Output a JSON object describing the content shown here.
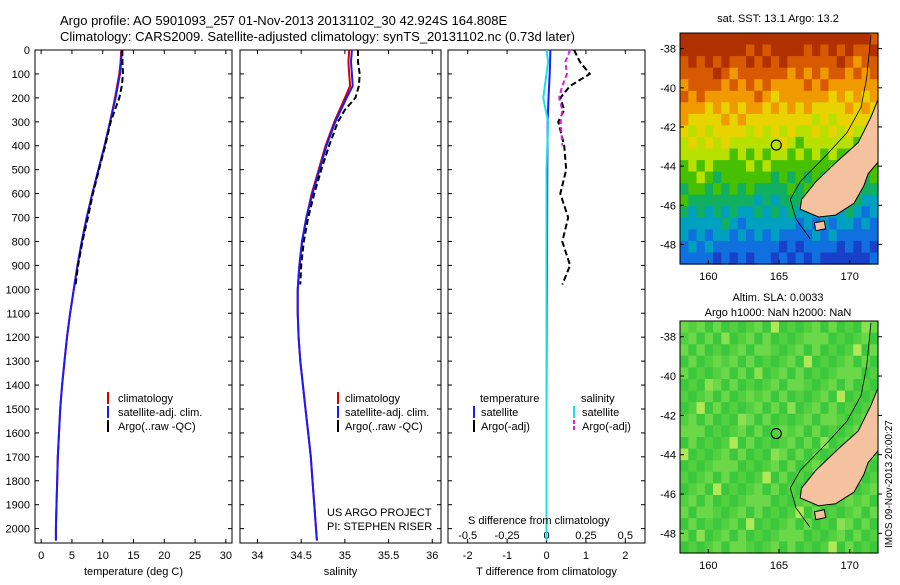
{
  "header": {
    "line1": "Argo profile: AO 5901093_257 01-Nov-2013 20131102_30 42.924S 164.808E",
    "line2": "Climatology: CARS2009. Satellite-adjusted climatology: synTS_20131102.nc (0.73d later)"
  },
  "panels": {
    "temperature": {
      "xlabel": "temperature (deg C)",
      "legend": [
        "climatology",
        "satellite-adj. clim.",
        "Argo(..raw -QC)"
      ]
    },
    "salinity": {
      "xlabel": "salinity",
      "legend": [
        "climatology",
        "satellite-adj. clim.",
        "Argo(..raw -QC)"
      ],
      "credit1": "US ARGO PROJECT",
      "credit2": "PI: STEPHEN RISER"
    },
    "difference": {
      "s_label": "S difference from climatology",
      "xlabel": "T difference from climatology",
      "legend_temperature_head": "temperature",
      "legend_salinity_head": "salinity",
      "legend_temperature": [
        "satellite",
        "Argo(-adj)"
      ],
      "legend_salinity": [
        "satellite",
        "Argo(-adj)"
      ]
    }
  },
  "maps": {
    "sst": {
      "title": "sat. SST: 13.1 Argo: 13.2"
    },
    "sla": {
      "title1": "Altim. SLA: 0.0033",
      "title2": "Argo h1000: NaN h2000: NaN"
    },
    "lat_ticks": [
      "-38",
      "-40",
      "-42",
      "-44",
      "-46",
      "-48"
    ],
    "lon_ticks": [
      "160",
      "165",
      "170"
    ],
    "lat_values": [
      -38,
      -40,
      -42,
      -44,
      -46,
      -48
    ],
    "lon_values": [
      160,
      165,
      170
    ],
    "lat_range": [
      -49,
      -37.2
    ],
    "lon_range": [
      158,
      172
    ],
    "float_position": {
      "lon": 164.808,
      "lat": -42.924
    }
  },
  "footer": {
    "stamp": "IMOS 09-Nov-2013 20:00:27"
  },
  "colors": {
    "climatology": "#d40000",
    "satellite_adj": "#1a1aff",
    "argo": "#000000",
    "salinity_satellite": "#18e0e8",
    "salinity_argo": "#dd1fdd",
    "land": "#f5c2a0"
  },
  "chart_data": [
    {
      "type": "line",
      "title": "",
      "xlabel": "temperature (deg C)",
      "ylabel": "",
      "xlim": [
        -1,
        31
      ],
      "ylim": [
        2060,
        0
      ],
      "xticks": [
        0,
        5,
        10,
        15,
        20,
        25,
        30
      ],
      "yticks": [
        0,
        100,
        200,
        300,
        400,
        500,
        600,
        700,
        800,
        900,
        1000,
        1100,
        1200,
        1300,
        1400,
        1500,
        1600,
        1700,
        1800,
        1900,
        2000
      ],
      "series": [
        {
          "name": "climatology",
          "y": [
            0,
            50,
            100,
            200,
            300,
            400,
            500,
            600,
            700,
            800,
            900,
            1000,
            1100,
            1200,
            1300,
            1400,
            1500,
            1600,
            1700,
            1800,
            1900,
            2000,
            2050
          ],
          "x": [
            13.0,
            12.9,
            12.7,
            12.0,
            11.2,
            10.3,
            9.3,
            8.3,
            7.4,
            6.6,
            5.9,
            5.3,
            4.7,
            4.2,
            3.8,
            3.4,
            3.1,
            2.9,
            2.7,
            2.6,
            2.5,
            2.4,
            2.4
          ]
        },
        {
          "name": "satellite-adj. clim.",
          "y": [
            0,
            50,
            100,
            200,
            300,
            400,
            500,
            600,
            700,
            800,
            900,
            1000,
            1100,
            1200,
            1300,
            1400,
            1500,
            1600,
            1700,
            1800,
            1900,
            2000,
            2050
          ],
          "x": [
            13.1,
            13.0,
            12.8,
            12.1,
            11.2,
            10.3,
            9.3,
            8.3,
            7.4,
            6.6,
            5.9,
            5.3,
            4.7,
            4.2,
            3.8,
            3.4,
            3.1,
            2.9,
            2.7,
            2.6,
            2.5,
            2.4,
            2.4
          ]
        },
        {
          "name": "Argo(..raw -QC)",
          "y": [
            0,
            50,
            100,
            150,
            200,
            250,
            300,
            400,
            500,
            600,
            700,
            800,
            900,
            980
          ],
          "x": [
            13.2,
            13.2,
            13.3,
            13.1,
            12.7,
            12.0,
            11.3,
            10.4,
            9.4,
            8.4,
            7.6,
            6.7,
            6.0,
            5.6
          ]
        }
      ]
    },
    {
      "type": "line",
      "title": "",
      "xlabel": "salinity",
      "ylabel": "",
      "xlim": [
        33.8,
        36.1
      ],
      "ylim": [
        2060,
        0
      ],
      "xticks": [
        34,
        34.5,
        35,
        35.5,
        36
      ],
      "series": [
        {
          "name": "climatology",
          "y": [
            0,
            50,
            100,
            150,
            200,
            300,
            400,
            500,
            600,
            700,
            800,
            900,
            1000,
            1100,
            1200,
            1300,
            1400,
            1500,
            1600,
            1700,
            1800,
            1900,
            2000,
            2050
          ],
          "x": [
            35.05,
            35.04,
            35.05,
            35.06,
            35.0,
            34.88,
            34.78,
            34.7,
            34.62,
            34.56,
            34.51,
            34.48,
            34.46,
            34.46,
            34.47,
            34.49,
            34.52,
            34.55,
            34.58,
            34.61,
            34.63,
            34.65,
            34.67,
            34.68
          ]
        },
        {
          "name": "satellite-adj. clim.",
          "y": [
            0,
            50,
            100,
            150,
            200,
            300,
            400,
            500,
            600,
            700,
            800,
            900,
            1000,
            1100,
            1200,
            1300,
            1400,
            1500,
            1600,
            1700,
            1800,
            1900,
            2000,
            2050
          ],
          "x": [
            35.08,
            35.07,
            35.08,
            35.09,
            35.02,
            34.89,
            34.79,
            34.71,
            34.63,
            34.56,
            34.51,
            34.48,
            34.46,
            34.46,
            34.47,
            34.49,
            34.52,
            34.55,
            34.58,
            34.61,
            34.63,
            34.65,
            34.67,
            34.68
          ]
        },
        {
          "name": "Argo(..raw -QC)",
          "y": [
            0,
            50,
            100,
            150,
            200,
            250,
            300,
            400,
            500,
            600,
            700,
            800,
            900,
            980
          ],
          "x": [
            35.15,
            35.15,
            35.17,
            35.16,
            35.12,
            35.0,
            34.92,
            34.82,
            34.73,
            34.65,
            34.58,
            34.53,
            34.5,
            34.49
          ]
        }
      ]
    },
    {
      "type": "line",
      "title": "",
      "xlabel": "T difference from climatology",
      "x2label": "S difference from climatology",
      "ylabel": "",
      "xlim": [
        -2.5,
        2.5
      ],
      "xticks": [
        -2,
        -1,
        0,
        1,
        2
      ],
      "x2lim": [
        -0.625,
        0.625
      ],
      "x2ticks": [
        -0.5,
        -0.25,
        0,
        0.25,
        0.5
      ],
      "ylim": [
        2060,
        0
      ],
      "series": [
        {
          "name": "temperature satellite",
          "y": [
            0,
            100,
            200,
            300,
            500,
            1000,
            1500,
            2050
          ],
          "x": [
            0.1,
            0.08,
            0.05,
            0.03,
            0.02,
            0.01,
            0.0,
            0.0
          ]
        },
        {
          "name": "temperature Argo(-adj)",
          "y": [
            0,
            50,
            100,
            150,
            200,
            250,
            300,
            400,
            500,
            600,
            700,
            800,
            900,
            980
          ],
          "x": [
            0.7,
            0.85,
            1.1,
            0.6,
            0.35,
            0.45,
            0.3,
            0.45,
            0.5,
            0.35,
            0.55,
            0.4,
            0.6,
            0.4
          ]
        },
        {
          "name": "salinity satellite",
          "y": [
            0,
            50,
            100,
            200,
            300,
            500,
            1000,
            1500,
            2050
          ],
          "x": [
            0.0,
            0.01,
            0.0,
            -0.02,
            0.01,
            0.0,
            0.0,
            0.0,
            0.0
          ]
        },
        {
          "name": "salinity Argo(-adj)",
          "y": [
            0,
            50,
            100,
            150,
            200,
            250,
            300,
            400
          ],
          "x": [
            0.15,
            0.12,
            0.13,
            0.1,
            0.08,
            0.1,
            0.09,
            0.1
          ]
        }
      ]
    }
  ]
}
